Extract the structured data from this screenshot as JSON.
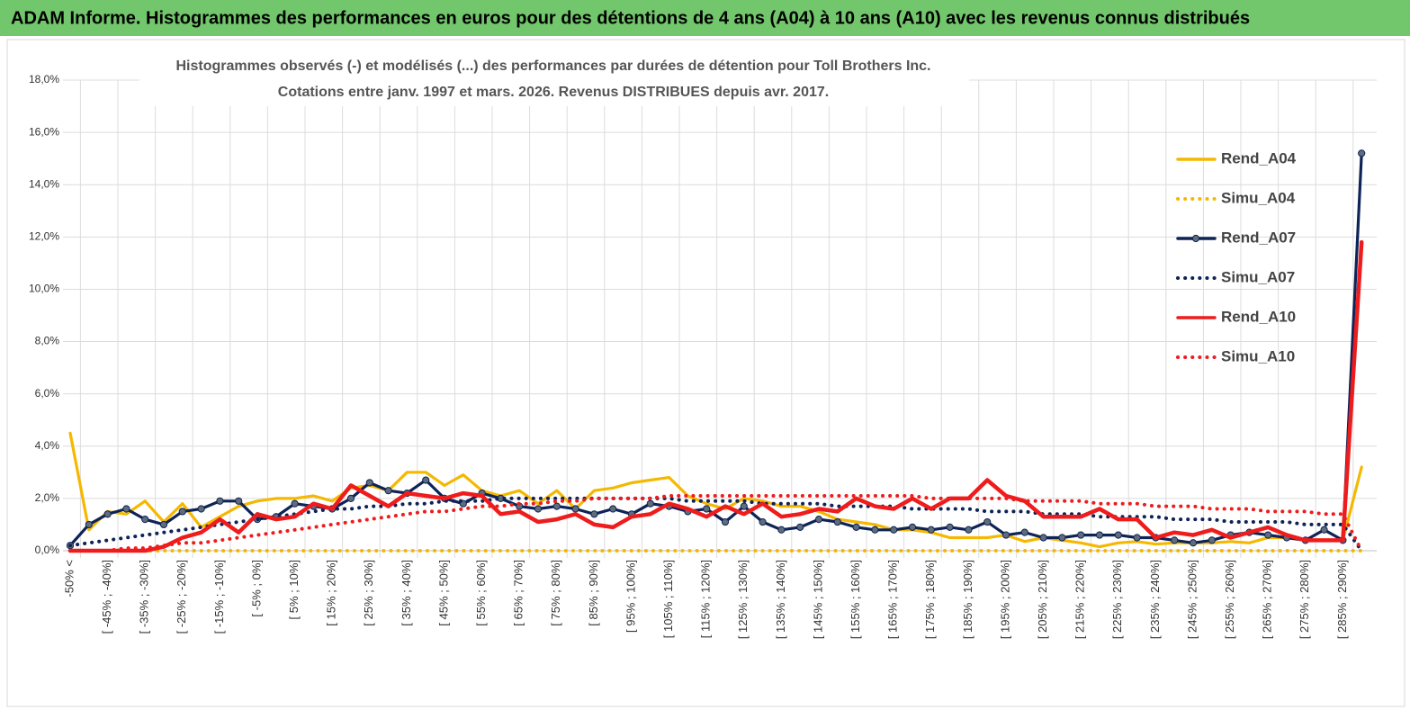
{
  "chart_data": {
    "type": "line",
    "title": "ADAM Informe. Histogrammes des performances en euros pour des détentions de 4 ans (A04) à 10 ans (A10) avec les revenus connus distribués",
    "subtitle": [
      "Histogrammes observés (-) et modélisés (...) des performances par durées de détention pour Toll Brothers Inc.",
      "Cotations entre janv. 1997 et mars. 2026.  Revenus DISTRIBUES depuis avr. 2017."
    ],
    "categories": [
      "-50% <",
      null,
      "[ -45% ; -40%]",
      null,
      "[ -35% ; -30%]",
      null,
      "[ -25% ; -20%]",
      null,
      "[ -15% ; -10%]",
      null,
      "[ -5% ; 0%]",
      null,
      "[ 5% ; 10%]",
      null,
      "[ 15% ; 20%]",
      null,
      "[ 25% ; 30%]",
      null,
      "[ 35% ; 40%]",
      null,
      "[ 45% ; 50%]",
      null,
      "[ 55% ; 60%]",
      null,
      "[ 65% ; 70%]",
      null,
      "[ 75% ; 80%]",
      null,
      "[ 85% ; 90%]",
      null,
      "[ 95% ; 100%]",
      null,
      "[ 105% ; 110%]",
      null,
      "[ 115% ; 120%]",
      null,
      "[ 125% ; 130%]",
      null,
      "[ 135% ; 140%]",
      null,
      "[ 145% ; 150%]",
      null,
      "[ 155% ; 160%]",
      null,
      "[ 165% ; 170%]",
      null,
      "[ 175% ; 180%]",
      null,
      "[ 185% ; 190%]",
      null,
      "[ 195% ; 200%]",
      null,
      "[ 205% ; 210%]",
      null,
      "[ 215% ; 220%]",
      null,
      "[ 225% ; 230%]",
      null,
      "[ 235% ; 240%]",
      null,
      "[ 245% ; 250%]",
      null,
      "[ 255% ; 260%]",
      null,
      "[ 265% ; 270%]",
      null,
      "[ 275% ; 280%]",
      null,
      "[ 285% ; 290%]",
      null
    ],
    "series": [
      {
        "name": "Rend_A04",
        "color": "#f5b800",
        "style": "solid",
        "values": [
          4.5,
          0.8,
          1.5,
          1.4,
          1.9,
          1.1,
          1.8,
          0.9,
          1.3,
          1.7,
          1.9,
          2.0,
          2.0,
          2.1,
          1.9,
          2.4,
          2.5,
          2.3,
          3.0,
          3.0,
          2.5,
          2.9,
          2.3,
          2.1,
          2.3,
          1.8,
          2.3,
          1.6,
          2.3,
          2.4,
          2.6,
          2.7,
          2.8,
          2.1,
          1.8,
          1.6,
          2.0,
          1.9,
          1.7,
          1.7,
          1.5,
          1.2,
          1.1,
          1.0,
          0.8,
          0.8,
          0.7,
          0.5,
          0.5,
          0.5,
          0.6,
          0.35,
          0.5,
          0.4,
          0.3,
          0.15,
          0.3,
          0.35,
          0.25,
          0.3,
          0.3,
          0.3,
          0.35,
          0.3,
          0.5,
          0.5,
          0.4,
          0.4,
          0.4,
          3.2
        ]
      },
      {
        "name": "Simu_A04",
        "color": "#f5b800",
        "style": "dotted",
        "values": [
          0,
          0,
          0,
          0,
          0,
          0,
          0,
          0,
          0,
          0,
          0,
          0,
          0,
          0,
          0,
          0,
          0,
          0,
          0,
          0,
          0,
          0,
          0,
          0,
          0,
          0,
          0,
          0,
          0,
          0,
          0,
          0,
          0,
          0,
          0,
          0,
          0,
          0,
          0,
          0,
          0,
          0,
          0,
          0,
          0,
          0,
          0,
          0,
          0,
          0,
          0,
          0,
          0,
          0,
          0,
          0,
          0,
          0,
          0,
          0,
          0,
          0,
          0,
          0,
          0,
          0,
          0,
          0,
          0,
          0
        ]
      },
      {
        "name": "Rend_A07",
        "color": "#0e2356",
        "style": "solid",
        "marker": true,
        "values": [
          0.2,
          1.0,
          1.4,
          1.6,
          1.2,
          1.0,
          1.5,
          1.6,
          1.9,
          1.9,
          1.2,
          1.3,
          1.8,
          1.7,
          1.6,
          2.0,
          2.6,
          2.3,
          2.2,
          2.7,
          2.0,
          1.8,
          2.2,
          2.0,
          1.7,
          1.6,
          1.7,
          1.6,
          1.4,
          1.6,
          1.4,
          1.8,
          1.7,
          1.5,
          1.6,
          1.1,
          1.7,
          1.1,
          0.8,
          0.9,
          1.2,
          1.1,
          0.9,
          0.8,
          0.8,
          0.9,
          0.8,
          0.9,
          0.8,
          1.1,
          0.6,
          0.7,
          0.5,
          0.5,
          0.6,
          0.6,
          0.6,
          0.5,
          0.5,
          0.4,
          0.3,
          0.4,
          0.6,
          0.7,
          0.6,
          0.5,
          0.4,
          0.8,
          0.4,
          15.2
        ]
      },
      {
        "name": "Simu_A07",
        "color": "#0e2356",
        "style": "dotted",
        "values": [
          0.2,
          0.3,
          0.4,
          0.5,
          0.6,
          0.7,
          0.8,
          0.9,
          1.0,
          1.1,
          1.2,
          1.3,
          1.4,
          1.5,
          1.6,
          1.6,
          1.7,
          1.7,
          1.8,
          1.8,
          1.9,
          1.9,
          1.9,
          2.0,
          2.0,
          2.0,
          2.0,
          2.0,
          2.0,
          2.0,
          2.0,
          2.0,
          2.0,
          1.9,
          1.9,
          1.9,
          1.9,
          1.8,
          1.8,
          1.8,
          1.8,
          1.7,
          1.7,
          1.7,
          1.7,
          1.6,
          1.6,
          1.6,
          1.6,
          1.5,
          1.5,
          1.5,
          1.4,
          1.4,
          1.4,
          1.3,
          1.3,
          1.3,
          1.3,
          1.2,
          1.2,
          1.2,
          1.1,
          1.1,
          1.1,
          1.1,
          1.0,
          1.0,
          1.0,
          0
        ]
      },
      {
        "name": "Rend_A10",
        "color": "#ee1c1c",
        "style": "solid",
        "values": [
          0,
          0,
          0,
          0,
          0,
          0.15,
          0.5,
          0.7,
          1.2,
          0.7,
          1.4,
          1.2,
          1.3,
          1.8,
          1.6,
          2.5,
          2.1,
          1.7,
          2.2,
          2.1,
          2.0,
          2.2,
          2.1,
          1.4,
          1.5,
          1.1,
          1.2,
          1.4,
          1.0,
          0.9,
          1.3,
          1.4,
          1.8,
          1.6,
          1.3,
          1.7,
          1.4,
          1.8,
          1.3,
          1.4,
          1.6,
          1.5,
          2.0,
          1.7,
          1.6,
          2.0,
          1.6,
          2.0,
          2.0,
          2.7,
          2.1,
          1.9,
          1.3,
          1.3,
          1.3,
          1.6,
          1.2,
          1.2,
          0.5,
          0.7,
          0.6,
          0.8,
          0.5,
          0.7,
          0.9,
          0.6,
          0.4,
          0.4,
          0.4,
          11.8
        ]
      },
      {
        "name": "Simu_A10",
        "color": "#ee1c1c",
        "style": "dotted",
        "values": [
          0,
          0,
          0,
          0.1,
          0.1,
          0.2,
          0.3,
          0.3,
          0.4,
          0.5,
          0.6,
          0.7,
          0.8,
          0.9,
          1.0,
          1.1,
          1.2,
          1.3,
          1.4,
          1.5,
          1.5,
          1.6,
          1.7,
          1.7,
          1.8,
          1.8,
          1.9,
          1.9,
          2.0,
          2.0,
          2.0,
          2.0,
          2.1,
          2.1,
          2.1,
          2.1,
          2.1,
          2.1,
          2.1,
          2.1,
          2.1,
          2.1,
          2.1,
          2.1,
          2.1,
          2.1,
          2.0,
          2.0,
          2.0,
          2.0,
          2.0,
          1.9,
          1.9,
          1.9,
          1.9,
          1.8,
          1.8,
          1.8,
          1.7,
          1.7,
          1.7,
          1.6,
          1.6,
          1.6,
          1.5,
          1.5,
          1.5,
          1.4,
          1.4,
          0
        ]
      }
    ],
    "ylim": [
      0,
      18
    ],
    "yticks": [
      {
        "value": 0,
        "label": "0,0%"
      },
      {
        "value": 2,
        "label": "2,0%"
      },
      {
        "value": 4,
        "label": "4,0%"
      },
      {
        "value": 6,
        "label": "6,0%"
      },
      {
        "value": 8,
        "label": "8,0%"
      },
      {
        "value": 10,
        "label": "10,0%"
      },
      {
        "value": 12,
        "label": "12,0%"
      },
      {
        "value": 14,
        "label": "14,0%"
      },
      {
        "value": 16,
        "label": "16,0%"
      },
      {
        "value": 18,
        "label": "18,0%"
      }
    ],
    "grid": true,
    "legend": "right"
  }
}
